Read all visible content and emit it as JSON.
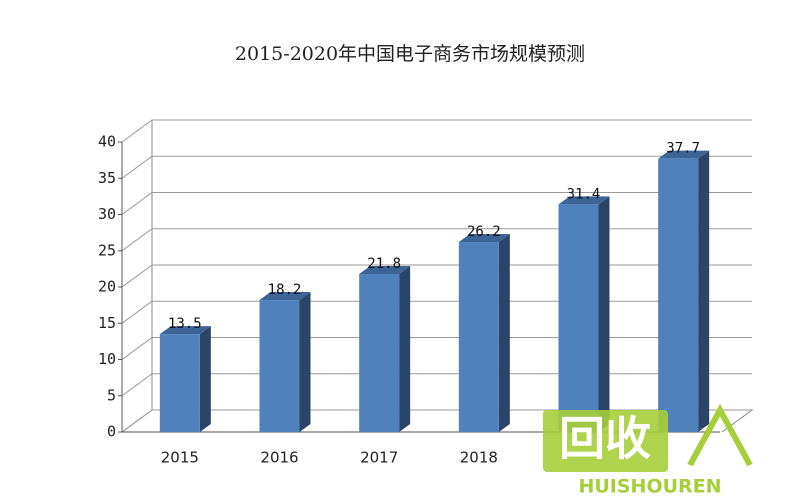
{
  "chart_data": {
    "type": "bar3d",
    "title": "2015-2020年中国电子商务市场规模预测",
    "categories": [
      "2015",
      "2016",
      "2017",
      "2018",
      null,
      null
    ],
    "values": [
      13.5,
      18.2,
      21.8,
      26.2,
      31.4,
      37.7
    ],
    "color": "#4f81bd",
    "ylim": [
      0,
      40
    ],
    "yticks": [
      0,
      5,
      10,
      15,
      20,
      25,
      30,
      35,
      40
    ],
    "grid": true
  },
  "watermark": {
    "text": "回收",
    "subtext": "HUISHOUREN"
  }
}
